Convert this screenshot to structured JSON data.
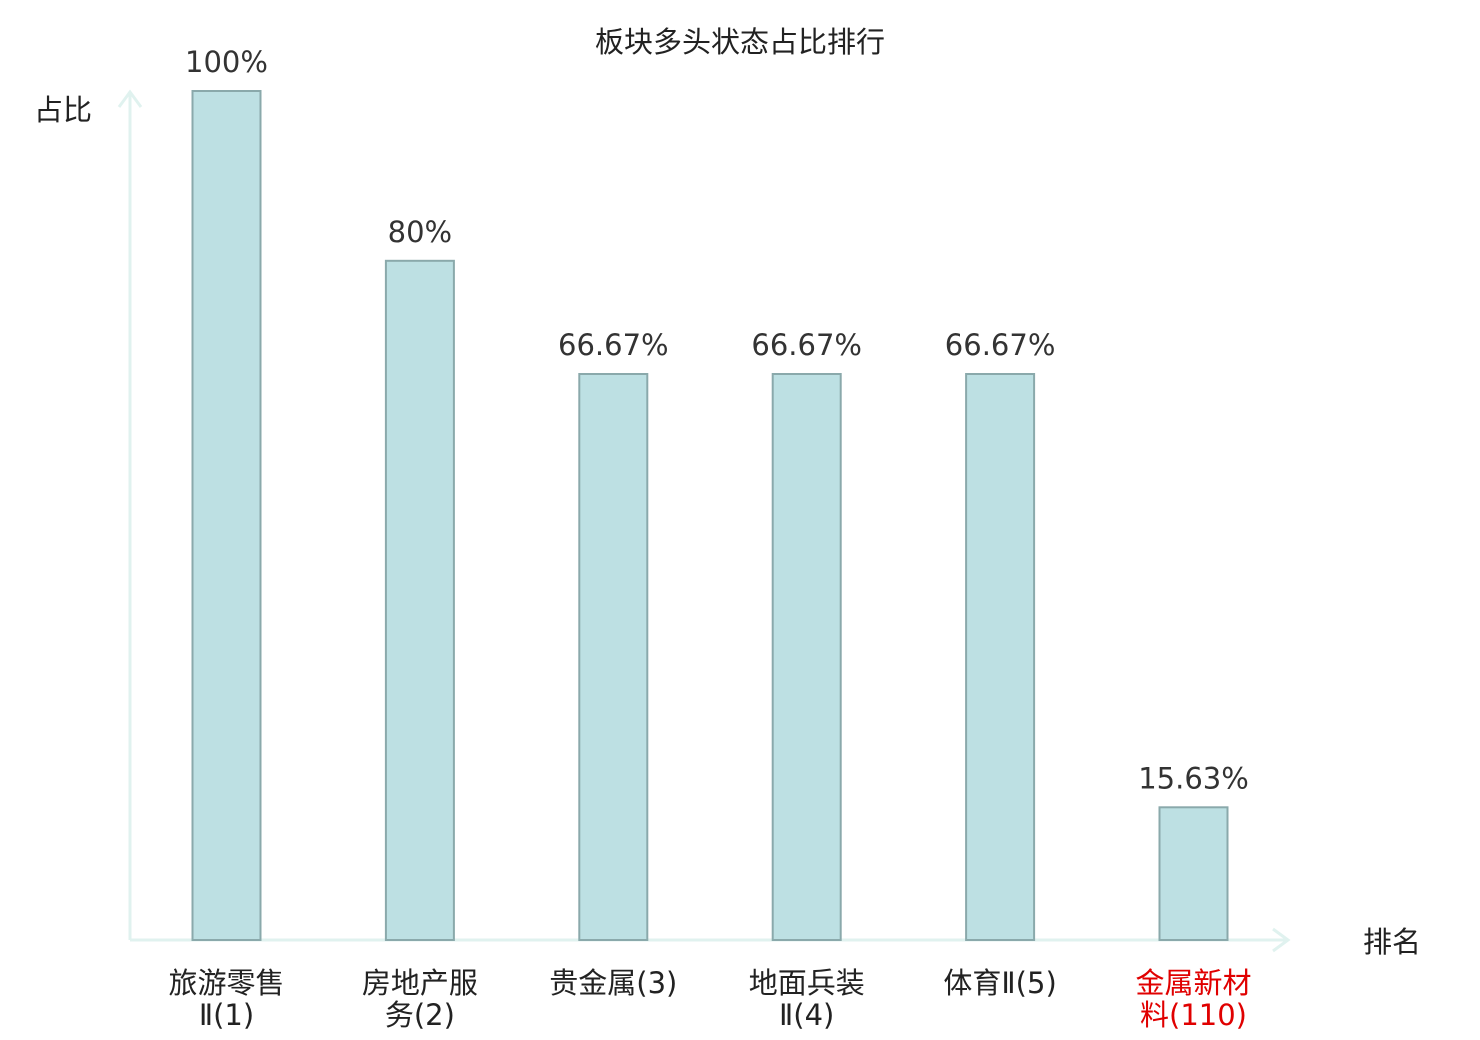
{
  "chart_data": {
    "type": "bar",
    "title": "板块多头状态占比排行",
    "ylabel": "占比",
    "xlabel": "排名",
    "ylim": [
      0,
      100
    ],
    "categories": [
      {
        "lines": [
          "旅游零售",
          "Ⅱ(1)"
        ],
        "highlight": false
      },
      {
        "lines": [
          "房地产服",
          "务(2)"
        ],
        "highlight": false
      },
      {
        "lines": [
          "贵金属(3)"
        ],
        "highlight": false
      },
      {
        "lines": [
          "地面兵装",
          "Ⅱ(4)"
        ],
        "highlight": false
      },
      {
        "lines": [
          "体育Ⅱ(5)"
        ],
        "highlight": false
      },
      {
        "lines": [
          "金属新材",
          "料(110)"
        ],
        "highlight": true
      }
    ],
    "values": [
      100,
      80,
      66.67,
      66.67,
      66.67,
      15.63
    ],
    "value_labels": [
      "100%",
      "80%",
      "66.67%",
      "66.67%",
      "66.67%",
      "15.63%"
    ],
    "colors": {
      "bar_fill": "#bde0e3",
      "bar_stroke": "#8aa9ab",
      "axis": "#e0f2ef",
      "highlight_text": "#e00000",
      "normal_text": "#222222"
    }
  }
}
